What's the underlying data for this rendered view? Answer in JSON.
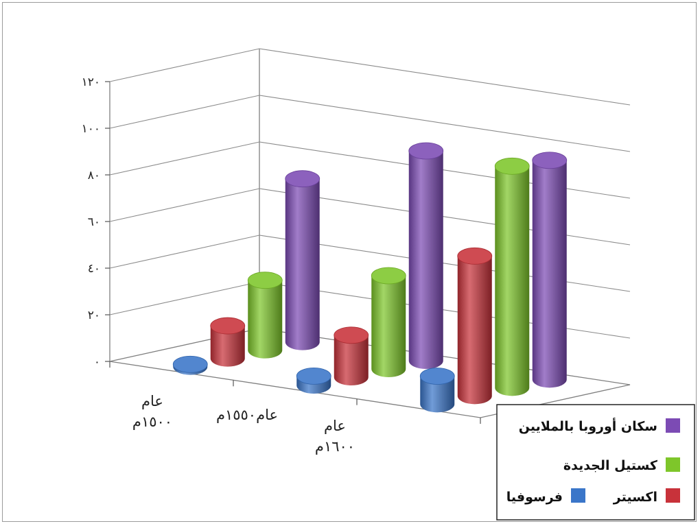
{
  "chart_data": {
    "type": "bar",
    "y_ticks": [
      "٠",
      "٢٠",
      "٤٠",
      "٦٠",
      "٨٠",
      "١٠٠",
      "١٢٠"
    ],
    "ylim": [
      0,
      120
    ],
    "categories": [
      {
        "line1": "عام",
        "line2": "١٥٠٠م"
      },
      {
        "line1": "عام١٥٥٠م",
        "line2": ""
      },
      {
        "line1": "عام",
        "line2": "١٦٠٠م"
      }
    ],
    "series": [
      {
        "name": "فرسوفيا",
        "color": "#3a76c9",
        "values": [
          1,
          4,
          12
        ]
      },
      {
        "name": "اكسيتر",
        "color": "#c8323a",
        "values": [
          14,
          18,
          60
        ]
      },
      {
        "name": "كستيل الجديدة",
        "color": "#7ec62a",
        "values": [
          30,
          40,
          95
        ]
      },
      {
        "name": "سكان أوروبا بالملايين",
        "color": "#7c4bb4",
        "values": [
          70,
          90,
          94
        ]
      }
    ],
    "legend_position": "bottom-right"
  }
}
